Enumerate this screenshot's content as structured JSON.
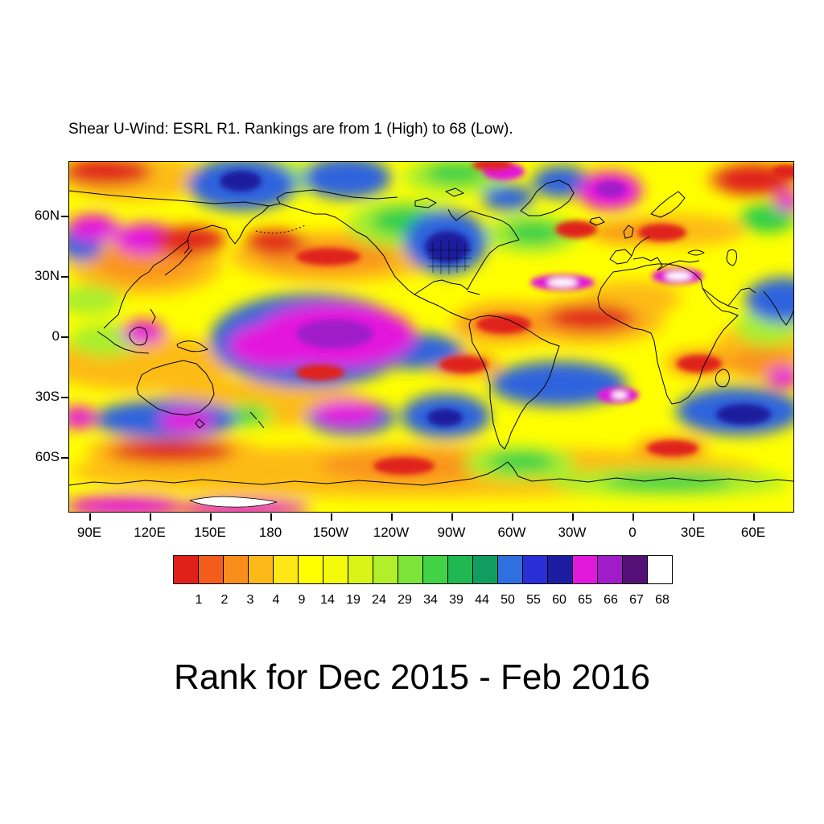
{
  "plot_title": "Shear U-Wind: ESRL R1. Rankings are from 1 (High) to 68 (Low).",
  "main_title": "Rank for Dec 2015 - Feb 2016",
  "map": {
    "y_axis_labels": [
      "60N",
      "30N",
      "0",
      "30S",
      "60S"
    ],
    "x_axis_labels": [
      "90E",
      "120E",
      "150E",
      "180",
      "150W",
      "120W",
      "90W",
      "60W",
      "30W",
      "0",
      "30E",
      "60E"
    ]
  },
  "colorbar": {
    "labels": [
      "1",
      "2",
      "3",
      "4",
      "9",
      "14",
      "19",
      "24",
      "29",
      "34",
      "39",
      "44",
      "50",
      "55",
      "60",
      "65",
      "66",
      "67",
      "68"
    ],
    "colors": [
      "#e0211a",
      "#f35c1b",
      "#fa8e1c",
      "#fdb918",
      "#ffe616",
      "#ffff00",
      "#f3fa0c",
      "#d8f418",
      "#b0ef2a",
      "#7de53a",
      "#41d245",
      "#1fb852",
      "#0f9e60",
      "#2f6fde",
      "#2a2ed6",
      "#1c1ca0",
      "#e318dd",
      "#a11cc9",
      "#541076",
      "#ffffff"
    ]
  },
  "chart_data": {
    "type": "heatmap",
    "title": "Shear U-Wind: ESRL R1. Rankings are from 1 (High) to 68 (Low).",
    "caption": "Rank for Dec 2015 - Feb 2016",
    "variable": "Shear U-Wind seasonal rank",
    "dataset": "ESRL R1",
    "rank_range": [
      1,
      68
    ],
    "rank_meaning": "1 = High, 68 = Low",
    "projection": "global cylindrical, longitudes shown from 90E eastward across the dateline to 60E",
    "x_tick_labels": [
      "90E",
      "120E",
      "150E",
      "180",
      "150W",
      "120W",
      "90W",
      "60W",
      "30W",
      "0",
      "30E",
      "60E"
    ],
    "y_tick_labels": [
      "60N",
      "30N",
      "0",
      "30S",
      "60S"
    ],
    "colorbar_boundary_values": [
      1,
      2,
      3,
      4,
      9,
      14,
      19,
      24,
      29,
      34,
      39,
      44,
      50,
      55,
      60,
      65,
      66,
      67,
      68
    ],
    "colorbar_colors": [
      "#e0211a",
      "#f35c1b",
      "#fa8e1c",
      "#fdb918",
      "#ffe616",
      "#ffff00",
      "#f3fa0c",
      "#d8f418",
      "#b0ef2a",
      "#7de53a",
      "#41d245",
      "#1fb852",
      "#0f9e60",
      "#2f6fde",
      "#2a2ed6",
      "#1c1ca0",
      "#e318dd",
      "#a11cc9",
      "#541076",
      "#ffffff"
    ],
    "notable_regions": [
      {
        "region": "central equatorial Pacific",
        "rank_band": "60-67 (magenta/purple, very low rank)"
      },
      {
        "region": "eastern United States",
        "rank_band": "55-66 (blue to dark blue)"
      },
      {
        "region": "subtropical North Atlantic near 25N",
        "rank_band": "65-68 (magenta with white core)"
      },
      {
        "region": "northeast Africa near 30N",
        "rank_band": "65-68 (magenta with white core)"
      },
      {
        "region": "equatorial Atlantic",
        "rank_band": "1-3 (red/orange, very high rank)"
      },
      {
        "region": "northwest Pacific near 40N",
        "rank_band": "1-4 (red/orange)"
      },
      {
        "region": "Southern Ocean near 60S, 130-160E",
        "rank_band": "1-4 (red/orange)"
      },
      {
        "region": "south Indian Ocean 30-45S east of 0",
        "rank_band": "50-60 (blue)"
      },
      {
        "region": "background mid-latitudes",
        "rank_band": "9-24 (yellow)"
      },
      {
        "region": "Antarctic coast near 150E",
        "rank_band": "68 (white) surrounded by 65-67 (magenta)"
      }
    ]
  }
}
